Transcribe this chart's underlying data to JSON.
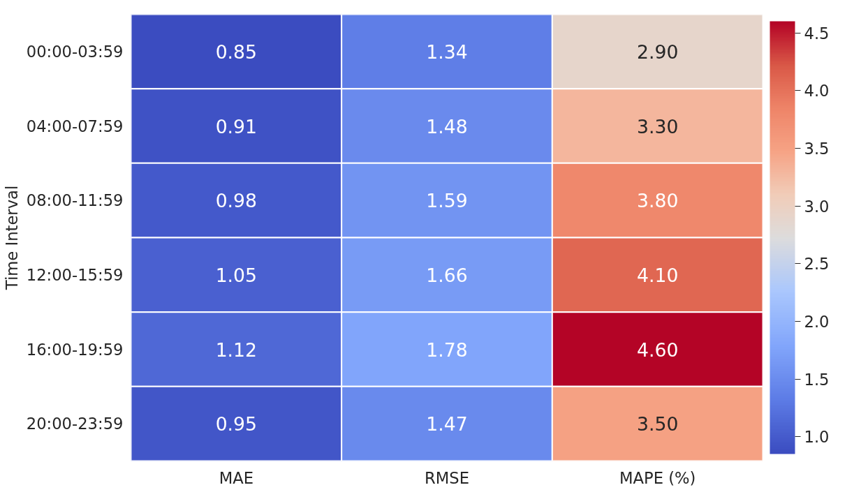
{
  "chart_data": {
    "type": "heatmap",
    "ylabel": "Time Interval",
    "categories": [
      "MAE",
      "RMSE",
      "MAPE (%)"
    ],
    "y_categories": [
      "00:00-03:59",
      "04:00-07:59",
      "08:00-11:59",
      "12:00-15:59",
      "16:00-19:59",
      "20:00-23:59"
    ],
    "cells": [
      [
        0.85,
        1.34,
        2.9
      ],
      [
        0.91,
        1.48,
        3.3
      ],
      [
        0.98,
        1.59,
        3.8
      ],
      [
        1.05,
        1.66,
        4.1
      ],
      [
        1.12,
        1.78,
        4.6
      ],
      [
        0.95,
        1.47,
        3.5
      ]
    ],
    "cell_labels": [
      [
        "0.85",
        "1.34",
        "2.90"
      ],
      [
        "0.91",
        "1.48",
        "3.30"
      ],
      [
        "0.98",
        "1.59",
        "3.80"
      ],
      [
        "1.05",
        "1.66",
        "4.10"
      ],
      [
        "1.12",
        "1.78",
        "4.60"
      ],
      [
        "0.95",
        "1.47",
        "3.50"
      ]
    ],
    "clim": [
      0.85,
      4.6
    ],
    "cticks": [
      {
        "value": 1,
        "label": "1.0"
      },
      1.5,
      {
        "value": 2,
        "label": "2.0"
      },
      2.5,
      {
        "value": 3,
        "label": "3.0"
      },
      3.5,
      {
        "value": 4,
        "label": "4.0"
      },
      4.5
    ]
  }
}
